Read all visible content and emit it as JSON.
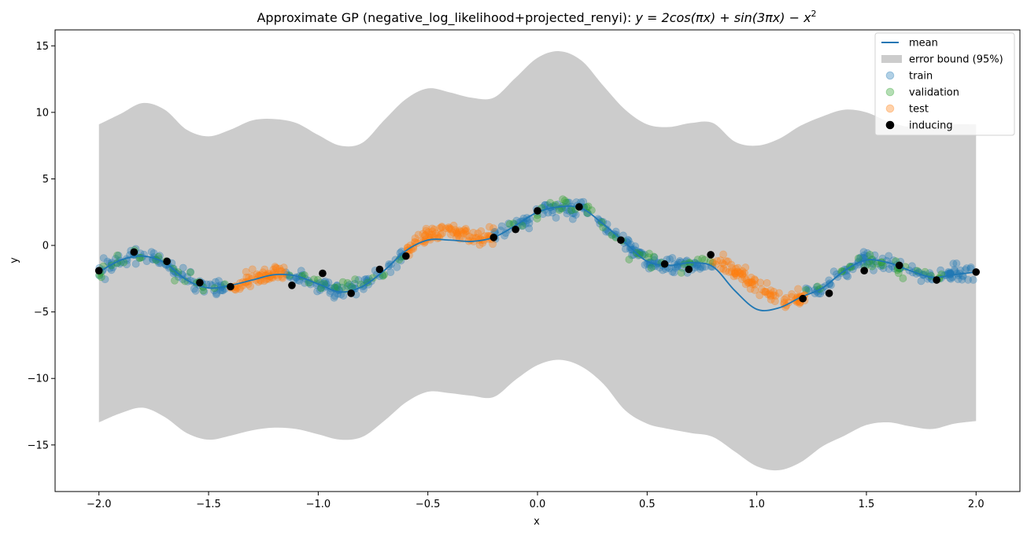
{
  "chart_data": {
    "type": "line",
    "title": "Approximate GP (negative_log_likelihood+projected_renyi): y = 2cos(πx) + sin(3πx) − x²",
    "title_parts": {
      "prefix": "Approximate GP (negative_log_likelihood+projected_renyi): ",
      "formula": "y = 2cos(πx) + sin(3πx) − x",
      "exponent": "2"
    },
    "xlabel": "x",
    "ylabel": "y",
    "xlim": [
      -2.2,
      2.2
    ],
    "ylim": [
      -18.5,
      16.2
    ],
    "xticks": [
      {
        "value": -2.0,
        "label": "−2.0"
      },
      {
        "value": -1.5,
        "label": "−1.5"
      },
      {
        "value": -1.0,
        "label": "−1.0"
      },
      {
        "value": -0.5,
        "label": "−0.5"
      },
      {
        "value": 0.0,
        "label": "0.0"
      },
      {
        "value": 0.5,
        "label": "0.5"
      },
      {
        "value": 1.0,
        "label": "1.0"
      },
      {
        "value": 1.5,
        "label": "1.5"
      },
      {
        "value": 2.0,
        "label": "2.0"
      }
    ],
    "yticks": [
      {
        "value": -15,
        "label": "−15"
      },
      {
        "value": -10,
        "label": "−10"
      },
      {
        "value": -5,
        "label": "−5"
      },
      {
        "value": 0,
        "label": "0"
      },
      {
        "value": 5,
        "label": "5"
      },
      {
        "value": 10,
        "label": "10"
      },
      {
        "value": 15,
        "label": "15"
      }
    ],
    "grid": false,
    "legend_position": "top-right",
    "legend": [
      {
        "label": "mean",
        "kind": "line",
        "color": "#1f77b4"
      },
      {
        "label": "error bound (95%)",
        "kind": "patch",
        "color": "#cccccc"
      },
      {
        "label": "train",
        "kind": "scatter",
        "color": "#1f77b4"
      },
      {
        "label": "validation",
        "kind": "scatter",
        "color": "#2ca02c"
      },
      {
        "label": "test",
        "kind": "scatter",
        "color": "#ff7f0e"
      },
      {
        "label": "inducing",
        "kind": "scatter",
        "color": "#000000"
      }
    ],
    "mean": {
      "name": "mean",
      "color": "#1f77b4",
      "x": [
        -2.0,
        -1.9,
        -1.8,
        -1.7,
        -1.6,
        -1.5,
        -1.4,
        -1.3,
        -1.2,
        -1.1,
        -1.0,
        -0.9,
        -0.8,
        -0.7,
        -0.6,
        -0.5,
        -0.4,
        -0.3,
        -0.2,
        -0.1,
        0.0,
        0.1,
        0.2,
        0.3,
        0.4,
        0.5,
        0.6,
        0.7,
        0.8,
        0.9,
        1.0,
        1.1,
        1.2,
        1.3,
        1.4,
        1.5,
        1.6,
        1.7,
        1.8,
        1.9,
        2.0
      ],
      "y": [
        -2.0,
        -1.1,
        -0.8,
        -1.3,
        -2.6,
        -3.2,
        -3.0,
        -2.6,
        -2.2,
        -2.3,
        -2.9,
        -3.5,
        -3.1,
        -1.9,
        -0.4,
        0.4,
        0.4,
        0.3,
        0.6,
        1.5,
        2.5,
        2.9,
        2.8,
        1.6,
        0.2,
        -1.2,
        -1.5,
        -1.3,
        -1.6,
        -3.4,
        -4.8,
        -4.7,
        -3.9,
        -3.2,
        -1.9,
        -1.1,
        -1.3,
        -1.9,
        -2.4,
        -2.2,
        -2.0
      ]
    },
    "error_bound": {
      "name": "error bound (95%)",
      "color": "#cccccc",
      "x": [
        -2.0,
        -1.9,
        -1.8,
        -1.7,
        -1.6,
        -1.5,
        -1.4,
        -1.3,
        -1.2,
        -1.1,
        -1.0,
        -0.9,
        -0.8,
        -0.7,
        -0.6,
        -0.5,
        -0.4,
        -0.3,
        -0.2,
        -0.1,
        0.0,
        0.1,
        0.2,
        0.3,
        0.4,
        0.5,
        0.6,
        0.7,
        0.8,
        0.9,
        1.0,
        1.1,
        1.2,
        1.3,
        1.4,
        1.5,
        1.6,
        1.7,
        1.8,
        1.9,
        2.0
      ],
      "upper": [
        9.1,
        9.9,
        10.7,
        10.2,
        8.7,
        8.2,
        8.7,
        9.4,
        9.5,
        9.2,
        8.3,
        7.5,
        7.7,
        9.4,
        11.0,
        11.8,
        11.5,
        11.1,
        11.1,
        12.6,
        14.1,
        14.6,
        13.9,
        12.0,
        10.2,
        9.1,
        8.9,
        9.2,
        9.2,
        7.8,
        7.5,
        8.0,
        9.0,
        9.7,
        10.2,
        10.0,
        9.3,
        8.9,
        9.0,
        9.1,
        9.1
      ],
      "lower": [
        -13.3,
        -12.6,
        -12.2,
        -12.9,
        -14.1,
        -14.6,
        -14.3,
        -13.9,
        -13.7,
        -13.8,
        -14.2,
        -14.6,
        -14.4,
        -13.2,
        -11.8,
        -11.0,
        -11.1,
        -11.3,
        -11.4,
        -10.1,
        -9.0,
        -8.6,
        -9.1,
        -10.4,
        -12.4,
        -13.4,
        -13.8,
        -14.1,
        -14.4,
        -15.5,
        -16.6,
        -16.9,
        -16.3,
        -15.1,
        -14.3,
        -13.5,
        -13.3,
        -13.6,
        -13.8,
        -13.4,
        -13.2
      ]
    },
    "inducing": {
      "name": "inducing",
      "color": "#000000",
      "x": [
        -2.0,
        -1.84,
        -1.69,
        -1.54,
        -1.4,
        -1.12,
        -0.98,
        -0.85,
        -0.72,
        -0.6,
        -0.2,
        -0.1,
        0.0,
        0.19,
        0.38,
        0.58,
        0.69,
        0.79,
        1.21,
        1.33,
        1.49,
        1.65,
        1.82,
        2.0
      ],
      "y": [
        -1.9,
        -0.5,
        -1.2,
        -2.8,
        -3.1,
        -3.0,
        -2.1,
        -3.6,
        -1.8,
        -0.8,
        0.6,
        1.2,
        2.6,
        2.9,
        0.4,
        -1.4,
        -1.8,
        -0.7,
        -4.0,
        -3.6,
        -1.9,
        -1.5,
        -2.6,
        -2.0
      ]
    },
    "train": {
      "name": "train",
      "color": "#1f77b4",
      "ranges": [
        [
          -2.0,
          -1.4
        ],
        [
          -1.15,
          -0.6
        ],
        [
          -0.2,
          0.5
        ],
        [
          0.5,
          0.8
        ],
        [
          1.22,
          2.0
        ]
      ],
      "count_per_range": [
        95,
        85,
        110,
        55,
        120
      ]
    },
    "validation": {
      "name": "validation",
      "color": "#2ca02c",
      "ranges": [
        [
          -2.0,
          -1.4
        ],
        [
          -1.15,
          -0.6
        ],
        [
          -0.2,
          0.5
        ],
        [
          0.5,
          0.8
        ],
        [
          1.22,
          2.0
        ]
      ],
      "count_per_range": [
        25,
        22,
        28,
        14,
        30
      ]
    },
    "test": {
      "name": "test",
      "color": "#ff7f0e",
      "ranges": [
        [
          -1.4,
          -1.15
        ],
        [
          -0.6,
          -0.2
        ],
        [
          0.8,
          1.22
        ]
      ],
      "count_per_range": [
        65,
        95,
        95
      ]
    },
    "scatter_noise": 0.55
  }
}
